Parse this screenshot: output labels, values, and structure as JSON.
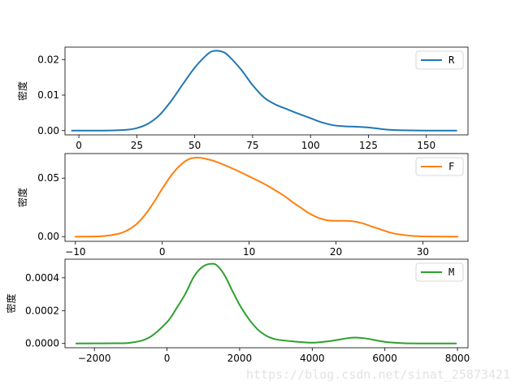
{
  "watermark": "https://blog.csdn.net/sinat_25873421",
  "chart_data": [
    {
      "type": "line",
      "ylabel": "密度",
      "xlim": [
        -6,
        168
      ],
      "ylim": [
        -0.0012,
        0.0235
      ],
      "xticks": [
        0,
        25,
        50,
        75,
        100,
        125,
        150
      ],
      "yticks": [
        0.0,
        0.01,
        0.02
      ],
      "ytick_labels": [
        "0.00",
        "0.01",
        "0.02"
      ],
      "legend_position": "top-right",
      "series": [
        {
          "name": "R",
          "color": "#1f77b4",
          "x": [
            -3,
            10,
            20,
            25,
            30,
            35,
            40,
            45,
            50,
            55,
            58,
            62,
            65,
            70,
            75,
            80,
            85,
            90,
            95,
            100,
            105,
            110,
            115,
            120,
            125,
            130,
            135,
            140,
            150,
            163
          ],
          "y": [
            0.0,
            0.0,
            0.0002,
            0.0007,
            0.002,
            0.0045,
            0.0085,
            0.0132,
            0.0177,
            0.0212,
            0.0224,
            0.0222,
            0.0208,
            0.0172,
            0.0128,
            0.0093,
            0.0073,
            0.006,
            0.0047,
            0.0035,
            0.0023,
            0.0015,
            0.0012,
            0.0011,
            0.0009,
            0.0005,
            0.0002,
            0.0001,
            0.0,
            0.0
          ]
        }
      ]
    },
    {
      "type": "line",
      "ylabel": "密度",
      "xlim": [
        -11.2,
        35.2
      ],
      "ylim": [
        -0.004,
        0.071
      ],
      "xticks": [
        -10,
        0,
        10,
        20,
        30
      ],
      "yticks": [
        0.0,
        0.05
      ],
      "ytick_labels": [
        "0.00",
        "0.05"
      ],
      "legend_position": "top-right",
      "series": [
        {
          "name": "F",
          "color": "#ff7f0e",
          "x": [
            -10,
            -7,
            -5,
            -4,
            -3,
            -2,
            -1,
            0,
            1,
            2,
            3,
            4,
            5,
            6,
            8,
            10,
            12,
            14,
            15,
            16,
            17,
            18,
            19,
            20,
            21,
            22,
            23,
            24,
            25,
            26,
            27,
            29,
            31,
            34
          ],
          "y": [
            0.0,
            0.0003,
            0.0025,
            0.0055,
            0.0105,
            0.0185,
            0.029,
            0.041,
            0.052,
            0.0605,
            0.066,
            0.0675,
            0.0665,
            0.0645,
            0.0585,
            0.0515,
            0.044,
            0.035,
            0.0295,
            0.0245,
            0.0195,
            0.016,
            0.014,
            0.0135,
            0.0135,
            0.013,
            0.0115,
            0.009,
            0.0065,
            0.004,
            0.0022,
            0.0005,
            0.0001,
            0.0
          ]
        }
      ]
    },
    {
      "type": "line",
      "ylabel": "密度",
      "xlim": [
        -2810,
        8290
      ],
      "ylim": [
        -2.6e-05,
        0.000513
      ],
      "xticks": [
        -2000,
        0,
        2000,
        4000,
        6000,
        8000
      ],
      "yticks": [
        0.0,
        0.0002,
        0.0004
      ],
      "ytick_labels": [
        "0.0000",
        "0.0002",
        "0.0004"
      ],
      "legend_position": "top-right",
      "series": [
        {
          "name": "M",
          "color": "#2ca02c",
          "x": [
            -2500,
            -1500,
            -1000,
            -500,
            0,
            250,
            500,
            750,
            1000,
            1250,
            1400,
            1600,
            1800,
            2000,
            2250,
            2500,
            2750,
            3000,
            3500,
            4000,
            4500,
            5000,
            5200,
            5500,
            6000,
            6500,
            7000,
            7500,
            7960
          ],
          "y": [
            0.0,
            1e-06,
            5e-06,
            3.5e-05,
            0.00013,
            0.00021,
            0.0003,
            0.00041,
            0.00047,
            0.000485,
            0.00047,
            0.00041,
            0.00032,
            0.000235,
            0.00015,
            8.5e-05,
            4.5e-05,
            2.5e-05,
            1.2e-05,
            5e-06,
            1.5e-05,
            3.3e-05,
            3.6e-05,
            3e-05,
            1e-05,
            2e-06,
            0.0,
            0.0,
            0.0
          ]
        }
      ]
    }
  ]
}
